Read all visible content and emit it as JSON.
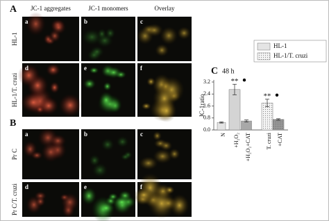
{
  "panel_A": {
    "label": "A",
    "columns": [
      "JC-1 aggregates",
      "JC-1 monomers",
      "Overlay"
    ],
    "rows": [
      {
        "label": "HL-1",
        "cells": [
          "a",
          "b",
          "c"
        ]
      },
      {
        "label": "HL-1/T. cruzi",
        "cells": [
          "d",
          "e",
          "f"
        ]
      }
    ]
  },
  "panel_B": {
    "label": "B",
    "rows": [
      {
        "label": "Pr C",
        "cells": [
          "a",
          "b",
          "c"
        ]
      },
      {
        "label": "Pr C/T. cruzi",
        "cells": [
          "d",
          "e",
          "f"
        ]
      }
    ]
  },
  "chart_data": {
    "type": "bar",
    "label": "C",
    "title": "48 h",
    "y_label": "JC-1ratio",
    "categories": [
      "N",
      "+H₂O₂",
      "+H₂O₂+CAT",
      "T. cruzi",
      "+CAT"
    ],
    "series": [
      {
        "name": "HL-1",
        "colors": [
          "#e4e4e4",
          "#d4d4d4",
          "#a8a8a8",
          null,
          null
        ],
        "values": [
          0.5,
          2.7,
          0.6,
          null,
          null
        ],
        "errors": [
          0.04,
          0.35,
          0.07,
          null,
          null
        ],
        "sig": [
          null,
          "**",
          null,
          null,
          null
        ]
      },
      {
        "name": "HL-1/T. cruzi",
        "colors": [
          null,
          null,
          null,
          "dots",
          "dots2"
        ],
        "values": [
          null,
          null,
          null,
          1.8,
          0.7
        ],
        "errors": [
          null,
          null,
          null,
          0.25,
          0.05
        ],
        "sig": [
          null,
          null,
          null,
          "**",
          null
        ]
      }
    ],
    "ylim": [
      0,
      3.2
    ],
    "yticks": [
      {
        "value": 0,
        "label": "0.0"
      },
      0.8,
      1.6,
      2.4,
      3.2
    ]
  }
}
